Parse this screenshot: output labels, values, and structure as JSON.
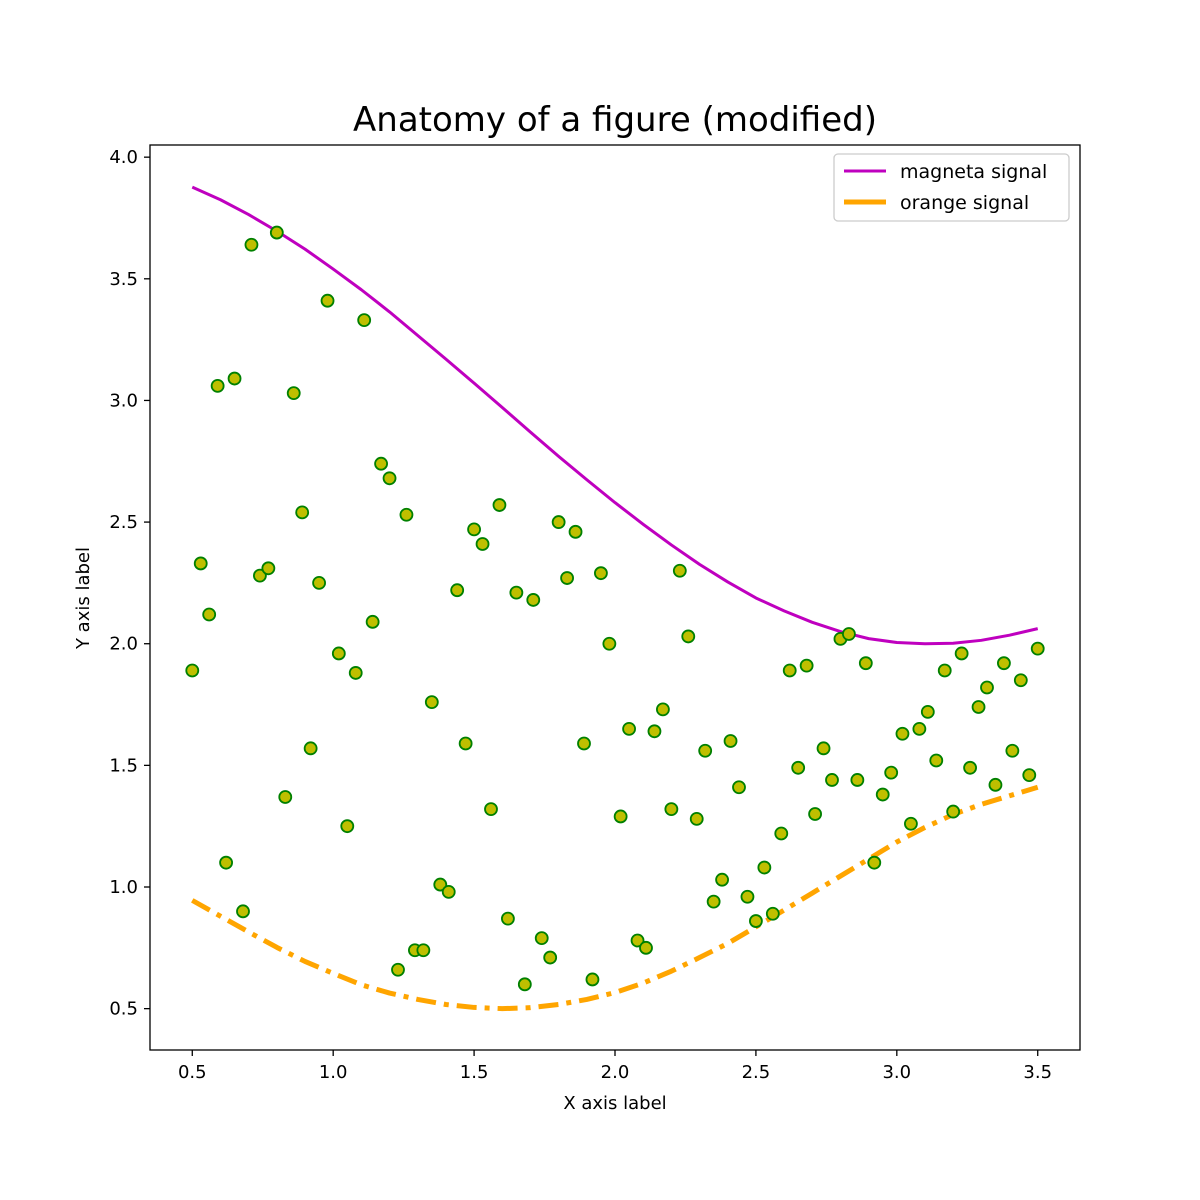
{
  "chart_data": {
    "type": "scatter",
    "title": "Anatomy of a figure (modified)",
    "xlabel": "X axis label",
    "ylabel": "Y axis label",
    "xlim": [
      0.35,
      3.65
    ],
    "ylim": [
      0.33,
      4.05
    ],
    "xticks": [
      0.5,
      1.0,
      1.5,
      2.0,
      2.5,
      3.0,
      3.5
    ],
    "xtick_labels": [
      "0.5",
      "1.0",
      "1.5",
      "2.0",
      "2.5",
      "3.0",
      "3.5"
    ],
    "yticks": [
      0.5,
      1.0,
      1.5,
      2.0,
      2.5,
      3.0,
      3.5,
      4.0
    ],
    "ytick_labels": [
      "0.5",
      "1.0",
      "1.5",
      "2.0",
      "2.5",
      "3.0",
      "3.5",
      "4.0"
    ],
    "grid": false,
    "legend_position": "top-right",
    "series": [
      {
        "name": "magneta signal",
        "kind": "line",
        "color": "#bf00bf",
        "style": "solid",
        "x": [
          0.5,
          0.6,
          0.7,
          0.8,
          0.9,
          1.0,
          1.1,
          1.2,
          1.3,
          1.4,
          1.5,
          1.6,
          1.7,
          1.8,
          1.9,
          2.0,
          2.1,
          2.2,
          2.3,
          2.4,
          2.5,
          2.6,
          2.7,
          2.8,
          2.9,
          3.0,
          3.1,
          3.2,
          3.3,
          3.4,
          3.5
        ],
        "y": [
          3.877,
          3.825,
          3.764,
          3.696,
          3.622,
          3.54,
          3.455,
          3.364,
          3.267,
          3.17,
          3.071,
          2.971,
          2.87,
          2.77,
          2.674,
          2.58,
          2.491,
          2.406,
          2.326,
          2.254,
          2.188,
          2.135,
          2.088,
          2.05,
          2.021,
          2.005,
          2.0,
          2.002,
          2.014,
          2.035,
          2.062
        ]
      },
      {
        "name": "orange signal",
        "kind": "line",
        "color": "#ffa500",
        "style": "dashdot",
        "x": [
          0.5,
          0.6,
          0.7,
          0.8,
          0.9,
          1.0,
          1.1,
          1.2,
          1.3,
          1.4,
          1.5,
          1.6,
          1.7,
          1.8,
          1.9,
          2.0,
          2.1,
          2.2,
          2.3,
          2.4,
          2.5,
          2.6,
          2.7,
          2.8,
          2.9,
          3.0,
          3.1,
          3.2,
          3.3,
          3.4,
          3.5
        ],
        "y": [
          0.945,
          0.88,
          0.815,
          0.752,
          0.694,
          0.645,
          0.598,
          0.564,
          0.538,
          0.517,
          0.505,
          0.5,
          0.504,
          0.517,
          0.538,
          0.566,
          0.605,
          0.654,
          0.71,
          0.768,
          0.836,
          0.905,
          0.975,
          1.045,
          1.115,
          1.185,
          1.245,
          1.298,
          1.34,
          1.375,
          1.41
        ]
      },
      {
        "name": "",
        "kind": "scatter",
        "color": "#bfbf00",
        "edge_color": "#008000",
        "x": [
          0.5,
          0.53,
          0.56,
          0.59,
          0.62,
          0.65,
          0.68,
          0.71,
          0.74,
          0.77,
          0.8,
          0.83,
          0.86,
          0.89,
          0.92,
          0.95,
          0.98,
          1.02,
          1.05,
          1.08,
          1.11,
          1.14,
          1.17,
          1.2,
          1.23,
          1.26,
          1.29,
          1.32,
          1.35,
          1.38,
          1.41,
          1.44,
          1.47,
          1.5,
          1.53,
          1.56,
          1.59,
          1.62,
          1.65,
          1.68,
          1.71,
          1.74,
          1.77,
          1.8,
          1.83,
          1.86,
          1.89,
          1.92,
          1.95,
          1.98,
          2.02,
          2.05,
          2.08,
          2.11,
          2.14,
          2.17,
          2.2,
          2.23,
          2.26,
          2.29,
          2.32,
          2.35,
          2.38,
          2.41,
          2.44,
          2.47,
          2.5,
          2.53,
          2.56,
          2.59,
          2.62,
          2.65,
          2.68,
          2.71,
          2.74,
          2.77,
          2.8,
          2.83,
          2.86,
          2.89,
          2.92,
          2.95,
          2.98,
          3.02,
          3.05,
          3.08,
          3.11,
          3.14,
          3.17,
          3.2,
          3.23,
          3.26,
          3.29,
          3.32,
          3.35,
          3.38,
          3.41,
          3.44,
          3.47,
          3.5
        ],
        "y": [
          1.89,
          2.33,
          2.12,
          3.06,
          1.1,
          3.09,
          0.9,
          3.64,
          2.28,
          2.31,
          3.69,
          1.37,
          3.03,
          2.54,
          1.57,
          2.25,
          3.41,
          1.96,
          1.25,
          1.88,
          3.33,
          2.09,
          2.74,
          2.68,
          0.66,
          2.53,
          0.74,
          0.74,
          1.76,
          1.01,
          0.98,
          2.22,
          1.59,
          2.47,
          2.41,
          1.32,
          2.57,
          0.87,
          2.21,
          0.6,
          2.18,
          0.79,
          0.71,
          2.5,
          2.27,
          2.46,
          1.59,
          0.62,
          2.29,
          2.0,
          1.29,
          1.65,
          0.78,
          0.75,
          1.64,
          1.73,
          1.32,
          2.3,
          2.03,
          1.28,
          1.56,
          0.94,
          1.03,
          1.6,
          1.41,
          0.96,
          0.86,
          1.08,
          0.89,
          1.22,
          1.89,
          1.49,
          1.91,
          1.3,
          1.57,
          1.44,
          2.02,
          2.04,
          1.44,
          1.92,
          1.1,
          1.38,
          1.47,
          1.63,
          1.26,
          1.65,
          1.72,
          1.52,
          1.89,
          1.31,
          1.96,
          1.49,
          1.74,
          1.82,
          1.42,
          1.92,
          1.56,
          1.85,
          1.46,
          1.98
        ]
      }
    ]
  }
}
